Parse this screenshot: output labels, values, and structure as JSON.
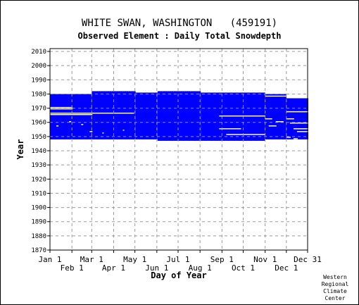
{
  "chart_data": {
    "type": "scatter",
    "title": "WHITE SWAN, WASHINGTON   (459191)",
    "subtitle": "Observed Element : Daily Total Snowdepth",
    "xlabel": "Day of Year",
    "ylabel": "Year",
    "xlim": [
      1,
      365
    ],
    "ylim": [
      1870,
      2012
    ],
    "grid": true,
    "y_ticks": [
      1870,
      1880,
      1890,
      1900,
      1910,
      1920,
      1930,
      1940,
      1950,
      1960,
      1970,
      1980,
      1990,
      2000,
      2010
    ],
    "x_ticks_top_row": [
      {
        "label": "Jan 1",
        "day": 1
      },
      {
        "label": "Mar 1",
        "day": 60
      },
      {
        "label": "May 1",
        "day": 121
      },
      {
        "label": "Jul 1",
        "day": 182
      },
      {
        "label": "Sep 1",
        "day": 244
      },
      {
        "label": "Nov 1",
        "day": 305
      },
      {
        "label": "Dec 31",
        "day": 365
      }
    ],
    "x_ticks_bottom_row": [
      {
        "label": "Feb 1",
        "day": 32
      },
      {
        "label": "Apr 1",
        "day": 91
      },
      {
        "label": "Jun 1",
        "day": 152
      },
      {
        "label": "Aug 1",
        "day": 213
      },
      {
        "label": "Oct 1",
        "day": 274
      },
      {
        "label": "Dec 1",
        "day": 335
      }
    ],
    "data_color": "#0000ff",
    "coverage_blocks": [
      {
        "day_start": 1,
        "day_end": 59,
        "year_start": 1948,
        "year_end": 1979
      },
      {
        "day_start": 60,
        "day_end": 121,
        "year_start": 1948,
        "year_end": 1981
      },
      {
        "day_start": 122,
        "day_end": 152,
        "year_start": 1948,
        "year_end": 1980
      },
      {
        "day_start": 153,
        "day_end": 213,
        "year_start": 1947,
        "year_end": 1981
      },
      {
        "day_start": 214,
        "day_end": 304,
        "year_start": 1947,
        "year_end": 1980
      },
      {
        "day_start": 305,
        "day_end": 334,
        "year_start": 1948,
        "year_end": 1979
      },
      {
        "day_start": 335,
        "day_end": 365,
        "year_start": 1948,
        "year_end": 1976
      }
    ],
    "missing_segments": [
      {
        "year": 1970,
        "day_start": 1,
        "day_end": 32
      },
      {
        "year": 1969,
        "day_start": 1,
        "day_end": 32
      },
      {
        "year": 1966,
        "day_start": 1,
        "day_end": 119
      },
      {
        "year": 1965,
        "day_start": 1,
        "day_end": 60
      },
      {
        "year": 1978,
        "day_start": 305,
        "day_end": 334
      },
      {
        "year": 1967,
        "day_start": 335,
        "day_end": 365
      },
      {
        "year": 1964,
        "day_start": 240,
        "day_end": 304
      },
      {
        "year": 1955,
        "day_start": 240,
        "day_end": 270
      },
      {
        "year": 1951,
        "day_start": 250,
        "day_end": 304
      },
      {
        "year": 1957,
        "day_start": 10,
        "day_end": 12
      },
      {
        "year": 1958,
        "day_start": 45,
        "day_end": 47
      },
      {
        "year": 1960,
        "day_start": 28,
        "day_end": 30
      },
      {
        "year": 1953,
        "day_start": 57,
        "day_end": 60
      },
      {
        "year": 1952,
        "day_start": 75,
        "day_end": 76
      },
      {
        "year": 1954,
        "day_start": 104,
        "day_end": 105
      },
      {
        "year": 1962,
        "day_start": 305,
        "day_end": 314
      },
      {
        "year": 1960,
        "day_start": 320,
        "day_end": 330
      },
      {
        "year": 1959,
        "day_start": 340,
        "day_end": 365
      },
      {
        "year": 1957,
        "day_start": 310,
        "day_end": 320
      },
      {
        "year": 1955,
        "day_start": 345,
        "day_end": 365
      },
      {
        "year": 1953,
        "day_start": 350,
        "day_end": 365
      },
      {
        "year": 1949,
        "day_start": 335,
        "day_end": 340
      },
      {
        "year": 1948,
        "day_start": 345,
        "day_end": 350
      },
      {
        "year": 1962,
        "day_start": 335,
        "day_end": 345
      }
    ]
  },
  "credit": [
    "Western",
    "Regional",
    "Climate",
    "Center"
  ]
}
